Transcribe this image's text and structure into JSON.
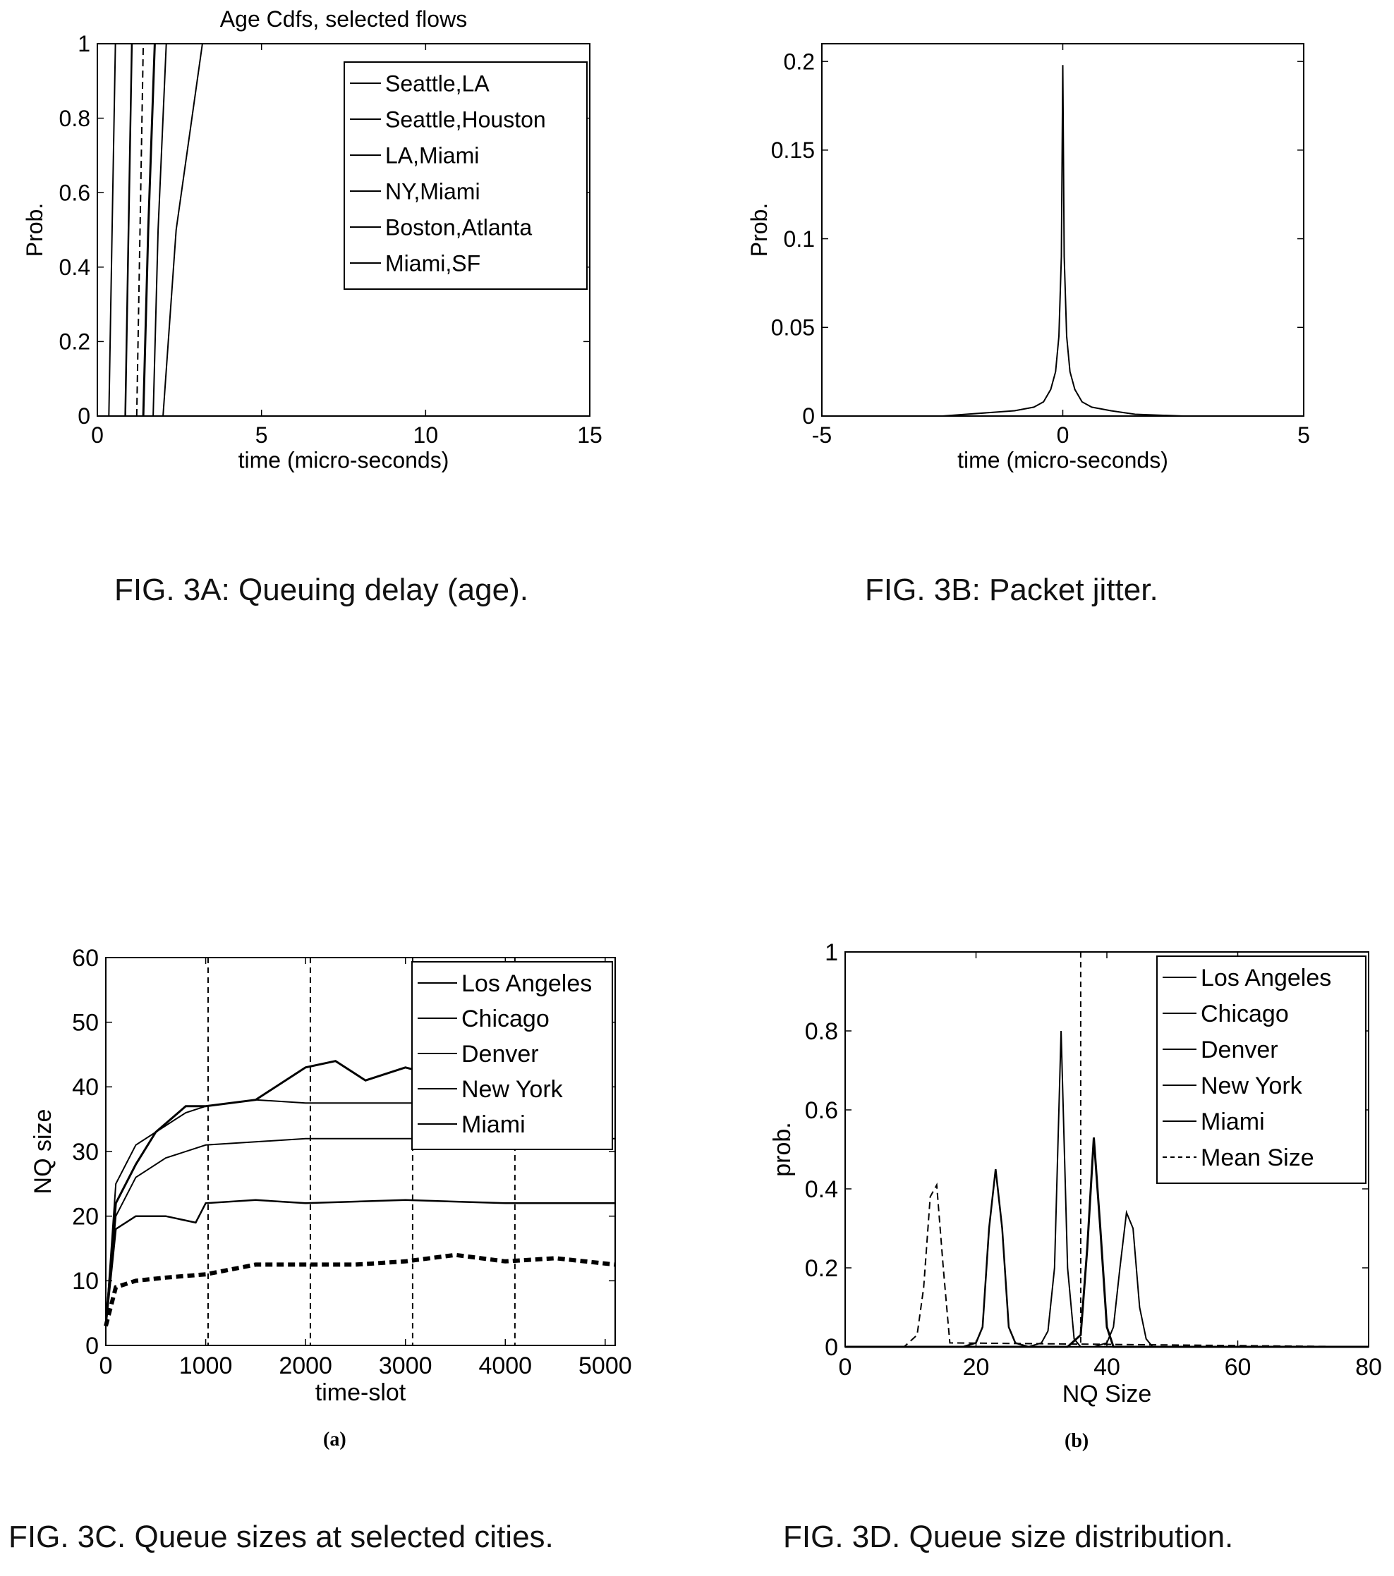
{
  "captions": {
    "fig3a": "FIG.   3A:  Queuing delay (age).",
    "fig3b": "FIG.  3B:   Packet jitter.",
    "fig3c": "FIG.  3C. Queue sizes at selected cities.",
    "fig3d": "FIG.  3D.   Queue size distribution.",
    "sub_a": "(a)",
    "sub_b": "(b)"
  },
  "chart_data": [
    {
      "id": "3A",
      "type": "line",
      "title": "Age Cdfs, selected flows",
      "xlabel": "time (micro-seconds)",
      "ylabel": "Prob.",
      "xlim": [
        0,
        15
      ],
      "ylim": [
        0,
        1
      ],
      "xticks": [
        0,
        5,
        10,
        15
      ],
      "yticks": [
        0,
        0.2,
        0.4,
        0.6,
        0.8,
        1
      ],
      "legend_position": "top-right",
      "grid": false,
      "series": [
        {
          "name": "Seattle,LA",
          "x": [
            0.35,
            0.45,
            0.55
          ],
          "y": [
            0,
            0.5,
            1
          ]
        },
        {
          "name": "Seattle,Houston",
          "x": [
            0.85,
            0.95,
            1.05
          ],
          "y": [
            0,
            0.5,
            1
          ]
        },
        {
          "name": "LA,Miami",
          "x": [
            1.2,
            1.3,
            1.4
          ],
          "y": [
            0,
            0.5,
            1
          ]
        },
        {
          "name": "NY,Miami",
          "x": [
            1.4,
            1.55,
            1.75
          ],
          "y": [
            0,
            0.5,
            1
          ]
        },
        {
          "name": "Boston,Atlanta",
          "x": [
            1.7,
            1.85,
            2.1
          ],
          "y": [
            0,
            0.5,
            1
          ]
        },
        {
          "name": "Miami,SF",
          "x": [
            2.0,
            2.4,
            3.2
          ],
          "y": [
            0,
            0.5,
            1
          ]
        }
      ]
    },
    {
      "id": "3B",
      "type": "line",
      "title": "",
      "xlabel": "time (micro-seconds)",
      "ylabel": "Prob.",
      "xlim": [
        -5,
        5
      ],
      "ylim": [
        0,
        0.21
      ],
      "xticks": [
        -5,
        0,
        5
      ],
      "yticks": [
        0,
        0.05,
        0.1,
        0.15,
        0.2
      ],
      "grid": false,
      "series": [
        {
          "name": "",
          "x": [
            -5,
            -2.5,
            -1.5,
            -1,
            -0.6,
            -0.4,
            -0.25,
            -0.15,
            -0.08,
            -0.03,
            0,
            0.03,
            0.08,
            0.15,
            0.25,
            0.4,
            0.6,
            1,
            1.5,
            2.5,
            5
          ],
          "y": [
            0,
            0,
            0.002,
            0.003,
            0.005,
            0.008,
            0.015,
            0.025,
            0.045,
            0.09,
            0.198,
            0.09,
            0.045,
            0.025,
            0.015,
            0.008,
            0.005,
            0.003,
            0.001,
            0,
            0
          ]
        }
      ]
    },
    {
      "id": "3C",
      "type": "line",
      "title": "",
      "xlabel": "time-slot",
      "ylabel": "NQ size",
      "xlim": [
        0,
        5100
      ],
      "ylim": [
        0,
        60
      ],
      "xticks": [
        0,
        1000,
        2000,
        3000,
        4000,
        5000
      ],
      "yticks": [
        0,
        10,
        20,
        30,
        40,
        50,
        60
      ],
      "vlines": [
        1024,
        2048,
        3072,
        4096
      ],
      "legend_position": "top-right",
      "grid": false,
      "series": [
        {
          "name": "Los Angeles",
          "x": [
            0,
            100,
            300,
            600,
            1000,
            1500,
            2000,
            3000,
            4000,
            5100
          ],
          "y": [
            3,
            20,
            26,
            29,
            31,
            31.5,
            32,
            32,
            32,
            32
          ]
        },
        {
          "name": "Chicago",
          "x": [
            0,
            100,
            300,
            600,
            900,
            1000,
            1500,
            2000,
            3000,
            4000,
            5100
          ],
          "y": [
            3,
            18,
            20,
            20,
            19,
            22,
            22.5,
            22,
            22.5,
            22,
            22
          ]
        },
        {
          "name": "Denver",
          "x": [
            0,
            100,
            300,
            600,
            1000,
            1500,
            2000,
            2500,
            3000,
            3500,
            4000,
            4500,
            5100
          ],
          "y": [
            3,
            9,
            10,
            10.5,
            11,
            12.5,
            12.5,
            12.5,
            13,
            14,
            13,
            13.5,
            12.5
          ]
        },
        {
          "name": "New York",
          "x": [
            0,
            100,
            300,
            500,
            800,
            1000,
            1500,
            2000,
            2300,
            2600,
            3000,
            3500,
            4000
          ],
          "y": [
            3,
            22,
            28,
            33,
            37,
            37,
            38,
            43,
            44,
            41,
            43,
            41,
            42
          ]
        },
        {
          "name": "Miami",
          "x": [
            0,
            100,
            300,
            500,
            800,
            1000,
            1500,
            2000,
            3000,
            4000
          ],
          "y": [
            3,
            25,
            31,
            33,
            36,
            37,
            38,
            37.5,
            37.5,
            37.5
          ]
        }
      ]
    },
    {
      "id": "3D",
      "type": "line",
      "title": "",
      "xlabel": "NQ Size",
      "ylabel": "prob.",
      "xlim": [
        0,
        80
      ],
      "ylim": [
        0,
        1
      ],
      "xticks": [
        0,
        20,
        40,
        60,
        80
      ],
      "yticks": [
        0,
        0.2,
        0.4,
        0.6,
        0.8,
        1
      ],
      "vlines": [
        36
      ],
      "legend_position": "top-right",
      "grid": false,
      "series": [
        {
          "name": "Los Angeles",
          "x": [
            0,
            28,
            30,
            31,
            32,
            33,
            34,
            35,
            36,
            80
          ],
          "y": [
            0,
            0,
            0.01,
            0.04,
            0.2,
            0.8,
            0.2,
            0.02,
            0,
            0
          ]
        },
        {
          "name": "Chicago",
          "x": [
            0,
            18,
            20,
            21,
            22,
            23,
            24,
            25,
            26,
            28,
            80
          ],
          "y": [
            0,
            0,
            0.01,
            0.05,
            0.3,
            0.45,
            0.3,
            0.05,
            0.01,
            0,
            0
          ]
        },
        {
          "name": "Denver",
          "x": [
            0,
            9,
            11,
            12,
            13,
            14,
            15,
            16,
            80
          ],
          "y": [
            0,
            0,
            0.03,
            0.15,
            0.38,
            0.41,
            0.2,
            0.01,
            0
          ]
        },
        {
          "name": "New York",
          "x": [
            0,
            34,
            36,
            37,
            38,
            39,
            40,
            41,
            80
          ],
          "y": [
            0,
            0,
            0.03,
            0.25,
            0.53,
            0.3,
            0.05,
            0,
            0
          ]
        },
        {
          "name": "Miami",
          "x": [
            0,
            38,
            40,
            41,
            42,
            43,
            44,
            45,
            46,
            47,
            80
          ],
          "y": [
            0,
            0,
            0.01,
            0.05,
            0.2,
            0.34,
            0.3,
            0.1,
            0.02,
            0,
            0
          ]
        }
      ],
      "legend_extra": [
        "Mean Size"
      ]
    }
  ]
}
